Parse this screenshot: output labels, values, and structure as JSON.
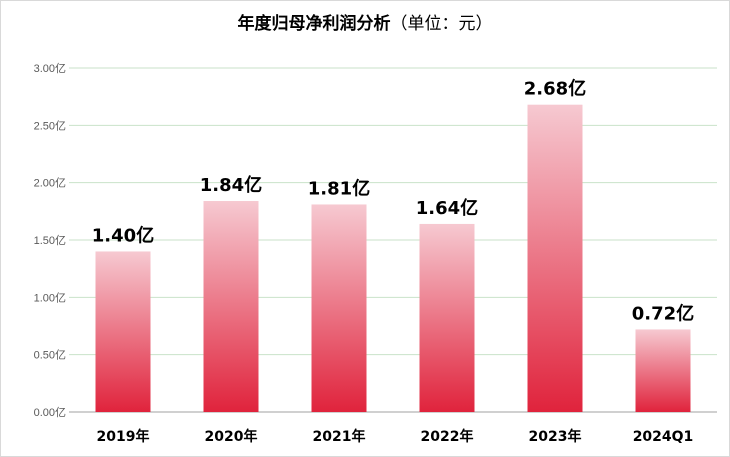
{
  "title": {
    "main": "年度归母净利润分析",
    "unit": "（单位：元）"
  },
  "colors": {
    "bar_top": "#f6c9d1",
    "bar_bottom": "#e0233c",
    "grid": "#c9e2c9",
    "axis": "#a0a0a0"
  },
  "chart_data": {
    "type": "bar",
    "title": "年度归母净利润分析（单位：元）",
    "categories": [
      "2019年",
      "2020年",
      "2021年",
      "2022年",
      "2023年",
      "2024Q1"
    ],
    "values": [
      1.4,
      1.84,
      1.81,
      1.64,
      2.68,
      0.72
    ],
    "data_labels": [
      "1.40亿",
      "1.84亿",
      "1.81亿",
      "1.64亿",
      "2.68亿",
      "0.72亿"
    ],
    "y_ticks": [
      0,
      0.5,
      1.0,
      1.5,
      2.0,
      2.5,
      3.0
    ],
    "y_tick_labels": [
      "0.00亿",
      "0.50亿",
      "1.00亿",
      "1.50亿",
      "2.00亿",
      "2.50亿",
      "3.00亿"
    ],
    "ylim": [
      0,
      3.0
    ],
    "grid": true,
    "legend": "none"
  }
}
